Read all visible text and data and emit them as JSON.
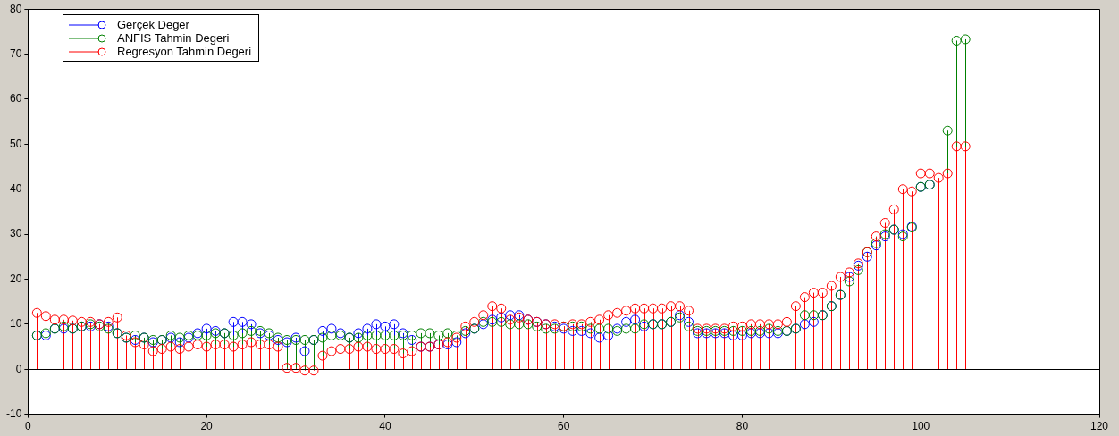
{
  "chart_data": {
    "type": "lollipop",
    "marker": "circle",
    "legend": "top left",
    "grid": false,
    "x": [
      1,
      2,
      3,
      4,
      5,
      6,
      7,
      8,
      9,
      10,
      11,
      12,
      13,
      14,
      15,
      16,
      17,
      18,
      19,
      20,
      21,
      22,
      23,
      24,
      25,
      26,
      27,
      28,
      29,
      30,
      31,
      32,
      33,
      34,
      35,
      36,
      37,
      38,
      39,
      40,
      41,
      42,
      43,
      44,
      45,
      46,
      47,
      48,
      49,
      50,
      51,
      52,
      53,
      54,
      55,
      56,
      57,
      58,
      59,
      60,
      61,
      62,
      63,
      64,
      65,
      66,
      67,
      68,
      69,
      70,
      71,
      72,
      73,
      74,
      75,
      76,
      77,
      78,
      79,
      80,
      81,
      82,
      83,
      84,
      85,
      86,
      87,
      88,
      89,
      90,
      91,
      92,
      93,
      94,
      95,
      96,
      97,
      98,
      99,
      100,
      101,
      102,
      103,
      104,
      105
    ],
    "xlim": [
      0,
      120
    ],
    "xticks": [
      0,
      20,
      40,
      60,
      80,
      100,
      120
    ],
    "ylim": [
      -10,
      80
    ],
    "yticks": [
      -10,
      0,
      10,
      20,
      30,
      40,
      50,
      60,
      70,
      80
    ],
    "ref_lines": [
      {
        "axis": "y",
        "value": 0,
        "color": "#000000"
      }
    ],
    "series": [
      {
        "name": "Gerçek Deger",
        "color": "#0000ff",
        "values": [
          7.5,
          7.5,
          9,
          9,
          9,
          9.5,
          9.5,
          10,
          9.5,
          8,
          7,
          6.5,
          7,
          6,
          6.5,
          7,
          6,
          7,
          8,
          9,
          8.5,
          8,
          10.5,
          10.5,
          10,
          8,
          7.5,
          6.5,
          6,
          7,
          4,
          6.5,
          8.5,
          9,
          8,
          7,
          8,
          9,
          10,
          9.5,
          10,
          8,
          6.5,
          5,
          5,
          5.5,
          5.5,
          6,
          8,
          9,
          10,
          11,
          11.5,
          12,
          12,
          11,
          10.5,
          10,
          9.5,
          9,
          8.5,
          8.5,
          8,
          7,
          7.5,
          9,
          10.5,
          11,
          9.5,
          10,
          10,
          10.5,
          12,
          10.5,
          8,
          8,
          8,
          8,
          7.5,
          7.5,
          8,
          8,
          8,
          8,
          8.5,
          9,
          10,
          10.5,
          12,
          14,
          16.5,
          20.5,
          23,
          25,
          27.5,
          29.5,
          31,
          30,
          31.7,
          40.5,
          41,
          null,
          null,
          null,
          null
        ]
      },
      {
        "name": "ANFIS Tahmin Degeri",
        "color": "#008000",
        "values": [
          7.5,
          8,
          9,
          9.5,
          9,
          9.5,
          10,
          9.5,
          9,
          8,
          7,
          7.5,
          7,
          6.5,
          6.5,
          7.5,
          7,
          7.5,
          7.5,
          7.5,
          8,
          8,
          7.5,
          8,
          8.5,
          8.5,
          8,
          7,
          6.5,
          6.5,
          6.5,
          6.5,
          7,
          7.5,
          7.5,
          7,
          7,
          7.5,
          7.5,
          7.5,
          7.5,
          7.5,
          7.5,
          8,
          8,
          7.5,
          8,
          7.5,
          8.5,
          9,
          10.5,
          10.5,
          10.5,
          10,
          10,
          10,
          9.5,
          9,
          9,
          9.5,
          9.5,
          9.5,
          9,
          9,
          9,
          8.5,
          9,
          9,
          10,
          10,
          10,
          10.5,
          11.5,
          9.5,
          8.5,
          8.5,
          8.5,
          8.5,
          8.5,
          8.5,
          8.5,
          8.5,
          9,
          8.5,
          8.5,
          9,
          12,
          12,
          12,
          14,
          16.5,
          19.5,
          22,
          26,
          28,
          30,
          31,
          29.5,
          31.5,
          40.5,
          41,
          null,
          53,
          73,
          73.3
        ]
      },
      {
        "name": "Regresyon Tahmin Degeri",
        "color": "#ff0000",
        "values": [
          12.5,
          11.8,
          11,
          11,
          10.8,
          10.5,
          10.5,
          10,
          10.5,
          11.5,
          7.5,
          6,
          5.5,
          4,
          4.5,
          5,
          4.5,
          5,
          5.5,
          5,
          5.5,
          5.5,
          5,
          5.5,
          6,
          5.5,
          5.5,
          5,
          0.3,
          0.3,
          -0.3,
          -0.3,
          3,
          4,
          4.5,
          4.5,
          5,
          5,
          4.5,
          4.5,
          4.5,
          3.5,
          4,
          5,
          5,
          5.5,
          6,
          7,
          9.5,
          10.5,
          12,
          14,
          13.5,
          11,
          11.5,
          11,
          10.5,
          10,
          10,
          9.5,
          10,
          10,
          10.5,
          11,
          12,
          12.5,
          13,
          13.5,
          13.5,
          13.5,
          13.5,
          14,
          14,
          13,
          9,
          9,
          9,
          9,
          9.5,
          9.5,
          10,
          10,
          10,
          10,
          10.5,
          14,
          16,
          17,
          17,
          18.5,
          20.5,
          21.5,
          23.5,
          26,
          29.5,
          32.5,
          35.5,
          40,
          39.5,
          43.5,
          43.5,
          42.5,
          43.5,
          49.5,
          49.5
        ]
      }
    ]
  }
}
